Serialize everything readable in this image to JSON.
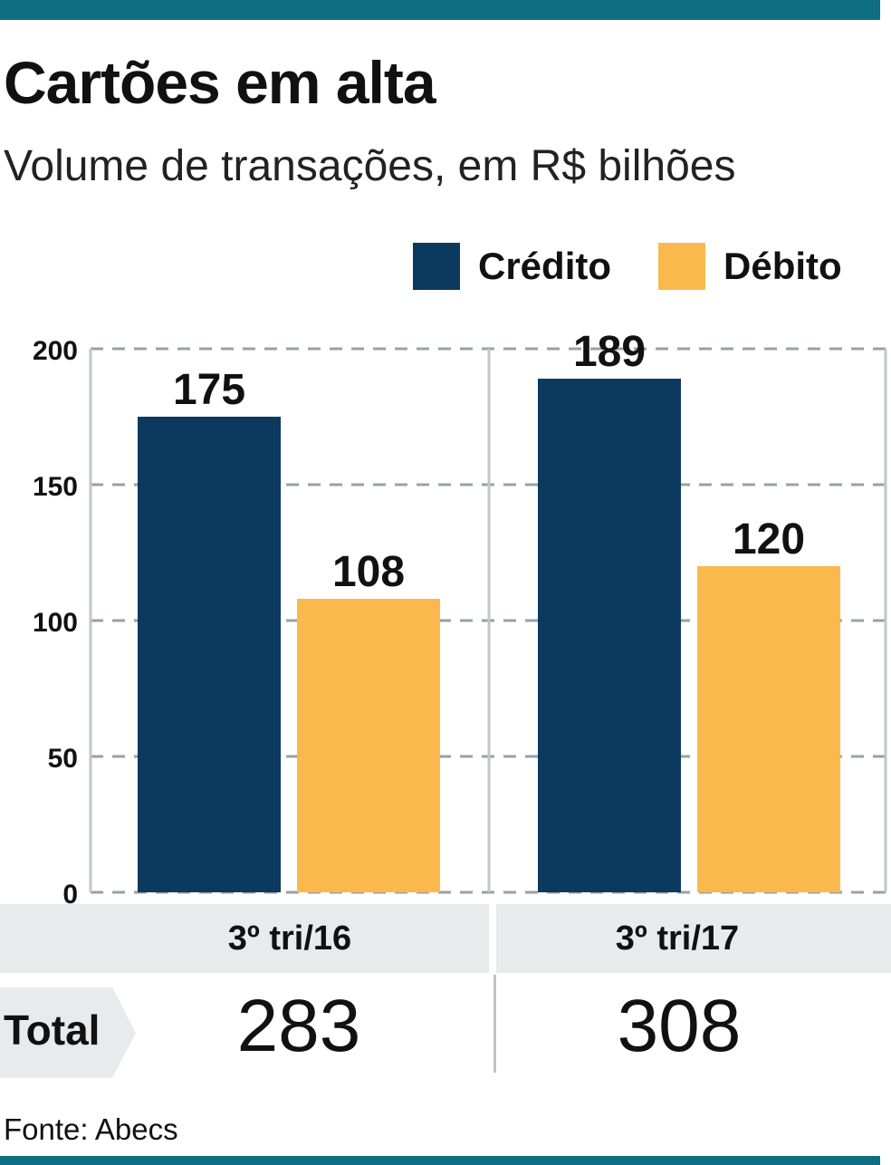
{
  "title": "Cartões em alta",
  "subtitle": "Volume de transações, em R$ bilhões",
  "legend": [
    {
      "label": "Crédito",
      "color": "#0b3a5e"
    },
    {
      "label": "Débito",
      "color": "#fbb84d"
    }
  ],
  "chart_data": {
    "type": "bar",
    "title": "Cartões em alta",
    "subtitle": "Volume de transações, em R$ bilhões",
    "categories": [
      "3º tri/16",
      "3º tri/17"
    ],
    "series": [
      {
        "name": "Crédito",
        "values": [
          175,
          189
        ],
        "color": "#0b3a5e"
      },
      {
        "name": "Débito",
        "values": [
          108,
          120
        ],
        "color": "#fbb84d"
      }
    ],
    "ylim": [
      0,
      200
    ],
    "yticks": [
      "0",
      "50",
      "100",
      "150",
      "200"
    ],
    "grid": true,
    "legend_position": "top-right"
  },
  "totals": {
    "label": "Total",
    "values": [
      "283",
      "308"
    ]
  },
  "source": "Fonte: Abecs"
}
